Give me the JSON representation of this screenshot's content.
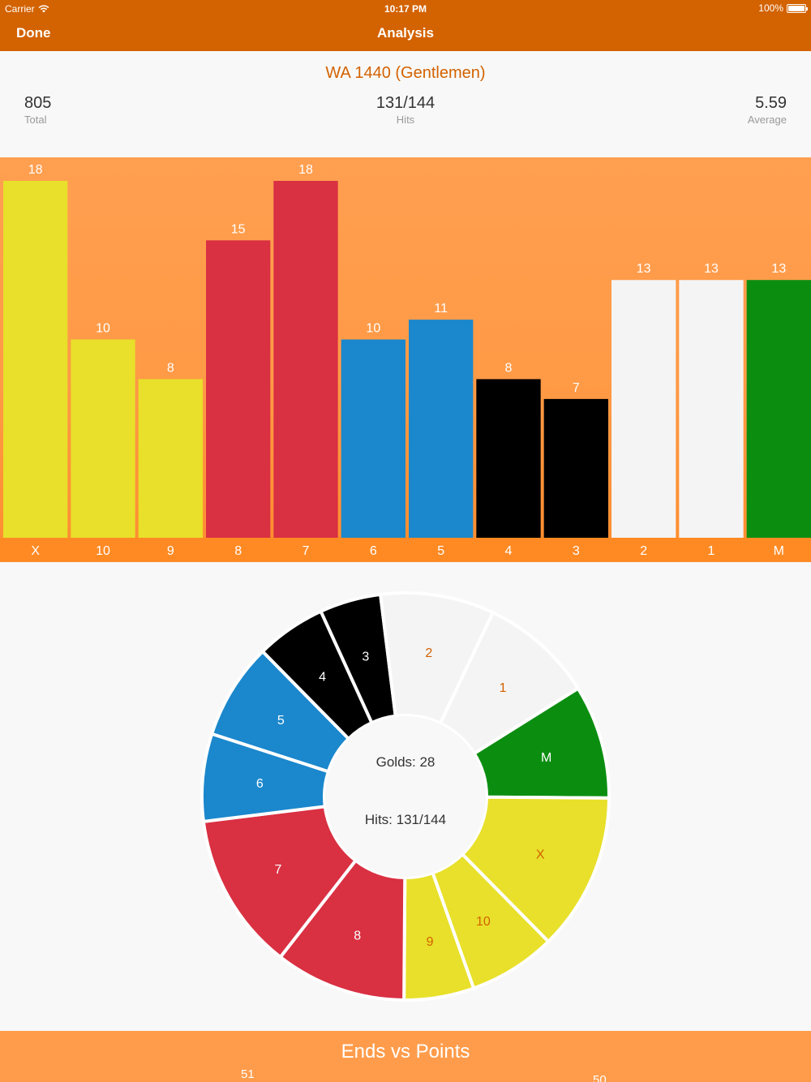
{
  "status": {
    "carrier": "Carrier",
    "time": "10:17 PM",
    "battery": "100%"
  },
  "nav": {
    "done_label": "Done",
    "title": "Analysis"
  },
  "summary": {
    "round_name": "WA 1440 (Gentlemen)",
    "total_value": "805",
    "total_label": "Total",
    "hits_value": "131/144",
    "hits_label": "Hits",
    "average_value": "5.59",
    "average_label": "Average"
  },
  "colors": {
    "accent": "#d36200",
    "gold": "#e8e02a",
    "red": "#d93042",
    "blue": "#1b87cc",
    "black": "#000000",
    "white": "#f4f4f4",
    "miss": "#0b8e10"
  },
  "chart_data": [
    {
      "type": "bar",
      "categories": [
        "X",
        "10",
        "9",
        "8",
        "7",
        "6",
        "5",
        "4",
        "3",
        "2",
        "1",
        "M"
      ],
      "values": [
        18,
        10,
        8,
        15,
        18,
        10,
        11,
        8,
        7,
        13,
        13,
        13
      ],
      "bar_colors": [
        "#e8e02a",
        "#e8e02a",
        "#e8e02a",
        "#d93042",
        "#d93042",
        "#1b87cc",
        "#1b87cc",
        "#000000",
        "#000000",
        "#f4f4f4",
        "#f4f4f4",
        "#0b8e10"
      ],
      "ylim": [
        0,
        18
      ],
      "grid": false
    },
    {
      "type": "pie",
      "labels": [
        "M",
        "X",
        "10",
        "9",
        "8",
        "7",
        "6",
        "5",
        "4",
        "3",
        "2",
        "1"
      ],
      "values": [
        13,
        18,
        10,
        8,
        15,
        18,
        10,
        11,
        8,
        7,
        13,
        13
      ],
      "slice_colors": [
        "#0b8e10",
        "#e8e02a",
        "#e8e02a",
        "#e8e02a",
        "#d93042",
        "#d93042",
        "#1b87cc",
        "#1b87cc",
        "#000000",
        "#000000",
        "#f4f4f4",
        "#f4f4f4"
      ],
      "label_colors": [
        "#ffffff",
        "#d36200",
        "#d36200",
        "#d36200",
        "#ffffff",
        "#ffffff",
        "#ffffff",
        "#ffffff",
        "#ffffff",
        "#ffffff",
        "#d36200",
        "#d36200"
      ],
      "center_golds": "Golds: 28",
      "center_hits": "Hits: 131/144"
    }
  ],
  "ends": {
    "title": "Ends vs Points",
    "value_left": "51",
    "value_right": "50"
  }
}
